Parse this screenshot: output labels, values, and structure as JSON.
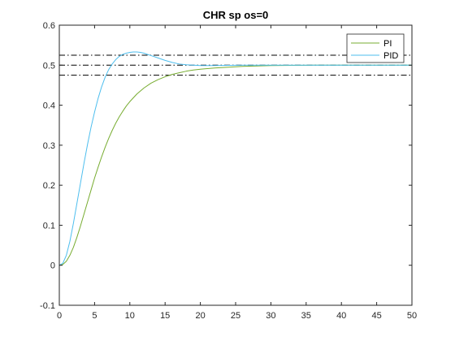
{
  "chart_data": {
    "type": "line",
    "title": "CHR sp os=0",
    "xlabel": "",
    "ylabel": "",
    "xlim": [
      0,
      50
    ],
    "ylim": [
      -0.1,
      0.6
    ],
    "x_ticks": [
      0,
      5,
      10,
      15,
      20,
      25,
      30,
      35,
      40,
      45,
      50
    ],
    "y_ticks": [
      -0.1,
      0,
      0.1,
      0.2,
      0.3,
      0.4,
      0.5,
      0.6
    ],
    "x_tick_labels": [
      "0",
      "5",
      "10",
      "15",
      "20",
      "25",
      "30",
      "35",
      "40",
      "45",
      "50"
    ],
    "y_tick_labels": [
      "-0.1",
      "0",
      "0.1",
      "0.2",
      "0.3",
      "0.4",
      "0.5",
      "0.6"
    ],
    "grid": false,
    "legend_position": "top-right",
    "reference_lines": [
      0.6,
      0.525,
      0.5,
      0.475
    ],
    "series": [
      {
        "name": "PI",
        "color": "#77ac30",
        "x": [
          0,
          0.5,
          1,
          1.5,
          2,
          2.5,
          3,
          3.5,
          4,
          4.5,
          5,
          5.5,
          6,
          6.5,
          7,
          7.5,
          8,
          8.5,
          9,
          9.5,
          10,
          11,
          12,
          13,
          14,
          15,
          16,
          17,
          18,
          19,
          20,
          22,
          24,
          26,
          28,
          30,
          33,
          36,
          40,
          45,
          50
        ],
        "y": [
          0,
          0.002,
          0.01,
          0.025,
          0.045,
          0.07,
          0.098,
          0.128,
          0.158,
          0.188,
          0.218,
          0.245,
          0.271,
          0.295,
          0.317,
          0.337,
          0.355,
          0.371,
          0.385,
          0.398,
          0.409,
          0.428,
          0.443,
          0.455,
          0.464,
          0.471,
          0.477,
          0.481,
          0.485,
          0.488,
          0.49,
          0.493,
          0.495,
          0.497,
          0.498,
          0.499,
          0.4995,
          0.5,
          0.5,
          0.5,
          0.5
        ]
      },
      {
        "name": "PID",
        "color": "#4dbeee",
        "x": [
          0,
          0.5,
          1,
          1.5,
          2,
          2.5,
          3,
          3.5,
          4,
          4.5,
          5,
          5.5,
          6,
          6.5,
          7,
          7.5,
          8,
          8.5,
          9,
          9.5,
          10,
          10.5,
          11,
          11.5,
          12,
          12.5,
          13,
          14,
          15,
          16,
          17,
          18,
          19,
          20,
          22,
          24,
          26,
          30,
          35,
          40,
          45,
          50
        ],
        "y": [
          0,
          0.005,
          0.025,
          0.06,
          0.105,
          0.155,
          0.205,
          0.255,
          0.302,
          0.345,
          0.383,
          0.417,
          0.446,
          0.47,
          0.489,
          0.503,
          0.514,
          0.522,
          0.527,
          0.53,
          0.532,
          0.533,
          0.533,
          0.532,
          0.53,
          0.527,
          0.524,
          0.518,
          0.512,
          0.507,
          0.503,
          0.501,
          0.5,
          0.499,
          0.499,
          0.4995,
          0.5,
          0.5,
          0.5,
          0.5,
          0.5,
          0.5
        ]
      }
    ]
  }
}
